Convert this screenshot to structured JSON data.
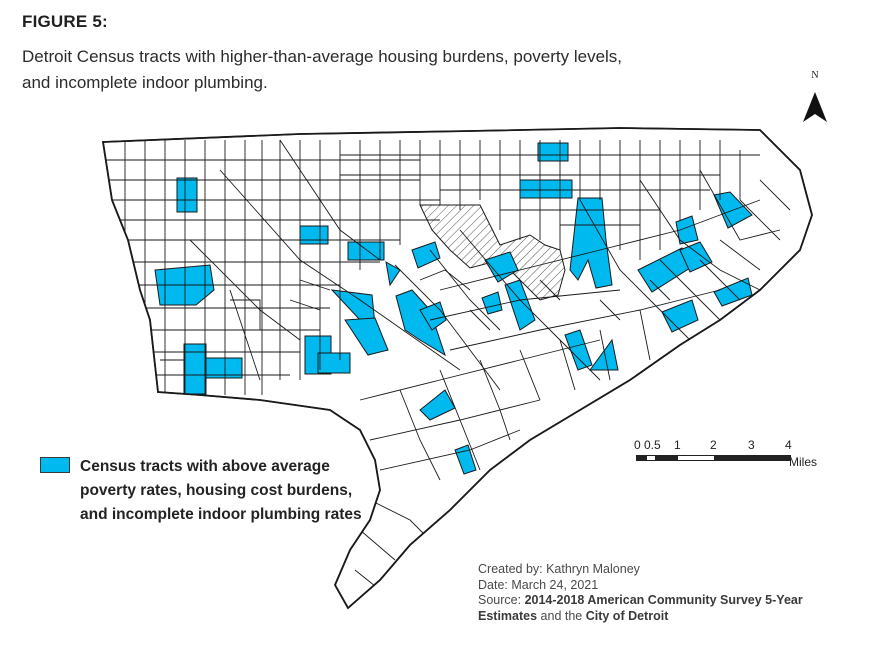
{
  "figure": {
    "label": "FIGURE 5:",
    "caption_line1": "Detroit Census tracts with higher-than-average housing burdens, poverty levels,",
    "caption_line2": "and incomplete indoor plumbing."
  },
  "north_arrow": {
    "letter": "N"
  },
  "legend": {
    "label": "Census tracts with above average poverty rates, housing cost burdens, and incomplete indoor plumbing rates",
    "color": "#00b9ef"
  },
  "scale_bar": {
    "ticks": [
      "0",
      "0.5",
      "1",
      "2",
      "3",
      "4"
    ],
    "unit": "Miles"
  },
  "credits": {
    "created_by": "Created by: Kathryn Maloney",
    "date": "Date: March 24, 2021",
    "source_prefix": "Source: ",
    "source_bold1": "2014-2018 American Community Survey 5-Year",
    "source_bold2": "Estimates",
    "source_mid": " and the ",
    "source_bold3": "City of Detroit"
  },
  "map": {
    "tract_stroke": "#1a1a1a",
    "highlight_fill": "#00b9ef",
    "hatched_area": "excluded-area-hatch"
  }
}
